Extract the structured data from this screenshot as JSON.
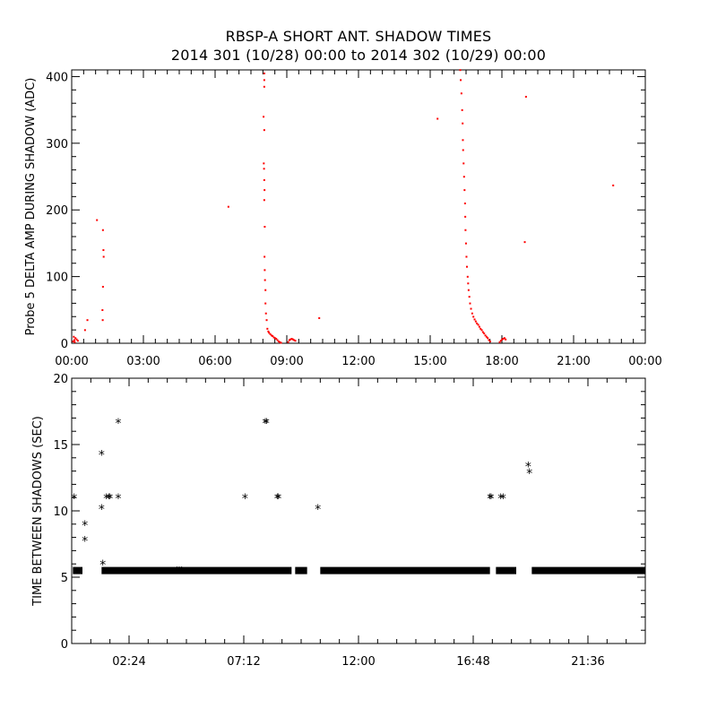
{
  "title": {
    "line1": "RBSP-A SHORT ANT. SHADOW TIMES",
    "line2": "2014 301 (10/28) 00:00 to 2014 302 (10/29) 00:00"
  },
  "colors": {
    "top_points": "#ff0000",
    "bottom_points": "#000000",
    "axes": "#000000"
  },
  "chart_data": [
    {
      "type": "scatter",
      "ylabel": "Probe 5 DELTA AMP DURING SHADOW (ADC)",
      "xlabel": "",
      "x_unit": "hours since 2014-10-28 00:00",
      "xlim": [
        0,
        24
      ],
      "ylim": [
        0,
        410
      ],
      "x_ticks": [
        {
          "x": 0,
          "label": "00:00"
        },
        {
          "x": 3,
          "label": "03:00"
        },
        {
          "x": 6,
          "label": "06:00"
        },
        {
          "x": 9,
          "label": "09:00"
        },
        {
          "x": 12,
          "label": "12:00"
        },
        {
          "x": 15,
          "label": "15:00"
        },
        {
          "x": 18,
          "label": "18:00"
        },
        {
          "x": 21,
          "label": "21:00"
        },
        {
          "x": 24,
          "label": "00:00"
        }
      ],
      "y_ticks": [
        0,
        100,
        200,
        300,
        400
      ],
      "series": [
        {
          "points": [
            [
              0.05,
              3
            ],
            [
              0.1,
              5
            ],
            [
              0.15,
              8
            ],
            [
              0.2,
              6
            ],
            [
              0.25,
              4
            ],
            [
              0.08,
              10
            ],
            [
              0.12,
              2
            ],
            [
              0.55,
              20
            ],
            [
              0.65,
              35
            ],
            [
              1.05,
              185
            ],
            [
              1.3,
              170
            ],
            [
              1.32,
              140
            ],
            [
              1.33,
              130
            ],
            [
              1.3,
              85
            ],
            [
              1.28,
              50
            ],
            [
              1.29,
              35
            ],
            [
              6.55,
              205
            ],
            [
              10.35,
              38
            ],
            [
              15.3,
              337
            ],
            [
              18.95,
              152
            ],
            [
              19.0,
              370
            ],
            [
              22.65,
              237
            ],
            [
              8.05,
              405
            ],
            [
              8.05,
              395
            ],
            [
              8.05,
              385
            ],
            [
              8.02,
              340
            ],
            [
              8.05,
              320
            ],
            [
              8.03,
              270
            ],
            [
              8.04,
              262
            ],
            [
              8.05,
              245
            ],
            [
              8.06,
              230
            ],
            [
              8.05,
              215
            ],
            [
              8.07,
              175
            ],
            [
              8.06,
              130
            ],
            [
              8.07,
              110
            ],
            [
              8.08,
              95
            ],
            [
              8.1,
              80
            ],
            [
              8.1,
              60
            ],
            [
              8.12,
              45
            ],
            [
              8.15,
              35
            ],
            [
              8.18,
              22
            ],
            [
              8.22,
              18
            ],
            [
              8.25,
              16
            ],
            [
              8.3,
              14
            ],
            [
              8.35,
              12
            ],
            [
              8.4,
              11
            ],
            [
              8.45,
              9
            ],
            [
              8.5,
              8
            ],
            [
              8.55,
              7
            ],
            [
              8.6,
              5
            ],
            [
              8.65,
              3
            ],
            [
              8.7,
              2
            ],
            [
              8.75,
              1
            ],
            [
              9.05,
              2
            ],
            [
              9.1,
              5
            ],
            [
              9.15,
              6
            ],
            [
              9.2,
              7
            ],
            [
              9.25,
              6
            ],
            [
              9.3,
              5
            ],
            [
              9.35,
              4
            ],
            [
              16.25,
              410
            ],
            [
              16.27,
              395
            ],
            [
              16.3,
              375
            ],
            [
              16.33,
              350
            ],
            [
              16.35,
              330
            ],
            [
              16.36,
              305
            ],
            [
              16.37,
              290
            ],
            [
              16.39,
              270
            ],
            [
              16.41,
              250
            ],
            [
              16.43,
              230
            ],
            [
              16.45,
              210
            ],
            [
              16.46,
              190
            ],
            [
              16.47,
              170
            ],
            [
              16.49,
              150
            ],
            [
              16.51,
              130
            ],
            [
              16.53,
              115
            ],
            [
              16.56,
              100
            ],
            [
              16.58,
              90
            ],
            [
              16.6,
              80
            ],
            [
              16.63,
              70
            ],
            [
              16.66,
              60
            ],
            [
              16.7,
              52
            ],
            [
              16.75,
              45
            ],
            [
              16.8,
              40
            ],
            [
              16.85,
              36
            ],
            [
              16.9,
              33
            ],
            [
              16.95,
              30
            ],
            [
              17.0,
              28
            ],
            [
              17.05,
              25
            ],
            [
              17.1,
              22
            ],
            [
              17.15,
              20
            ],
            [
              17.2,
              17
            ],
            [
              17.25,
              15
            ],
            [
              17.3,
              12
            ],
            [
              17.35,
              10
            ],
            [
              17.4,
              8
            ],
            [
              17.45,
              5
            ],
            [
              17.5,
              3
            ],
            [
              17.9,
              2
            ],
            [
              17.95,
              4
            ],
            [
              18.0,
              6
            ],
            [
              18.05,
              7
            ],
            [
              18.1,
              8
            ],
            [
              18.15,
              6
            ]
          ]
        }
      ]
    },
    {
      "type": "scatter",
      "ylabel": "TIME BETWEEN SHADOWS (SEC)",
      "xlabel": "",
      "x_unit": "hours since 2014-10-28 00:00",
      "xlim": [
        0,
        24
      ],
      "ylim": [
        0,
        20
      ],
      "x_ticks": [
        {
          "x": 2.4,
          "label": "02:24"
        },
        {
          "x": 7.2,
          "label": "07:12"
        },
        {
          "x": 12,
          "label": "12:00"
        },
        {
          "x": 16.8,
          "label": "16:48"
        },
        {
          "x": 21.6,
          "label": "21:36"
        }
      ],
      "y_ticks": [
        0,
        5,
        10,
        15,
        20
      ],
      "series": [
        {
          "bands": [
            [
              0.05,
              0.45,
              5.5
            ],
            [
              1.25,
              9.2,
              5.5
            ],
            [
              9.35,
              9.85,
              5.5
            ],
            [
              10.4,
              17.5,
              5.5
            ],
            [
              17.75,
              18.6,
              5.5
            ],
            [
              19.25,
              24,
              5.5
            ]
          ],
          "points": [
            [
              0.1,
              11.0
            ],
            [
              0.55,
              9.0
            ],
            [
              0.55,
              7.8
            ],
            [
              1.25,
              14.3
            ],
            [
              1.25,
              10.2
            ],
            [
              1.3,
              6.0
            ],
            [
              1.45,
              11.0
            ],
            [
              1.55,
              11.0
            ],
            [
              1.6,
              11.0
            ],
            [
              1.95,
              16.7
            ],
            [
              1.95,
              11.0
            ],
            [
              7.25,
              11.0
            ],
            [
              8.1,
              16.7
            ],
            [
              8.15,
              16.7
            ],
            [
              8.6,
              11.0
            ],
            [
              8.65,
              11.0
            ],
            [
              10.3,
              10.2
            ],
            [
              17.5,
              11.0
            ],
            [
              17.55,
              11.0
            ],
            [
              17.95,
              11.0
            ],
            [
              18.05,
              11.0
            ],
            [
              19.1,
              13.4
            ],
            [
              19.15,
              12.9
            ],
            [
              4.4,
              5.5
            ],
            [
              4.5,
              5.5
            ],
            [
              4.6,
              5.5
            ]
          ]
        }
      ]
    }
  ]
}
